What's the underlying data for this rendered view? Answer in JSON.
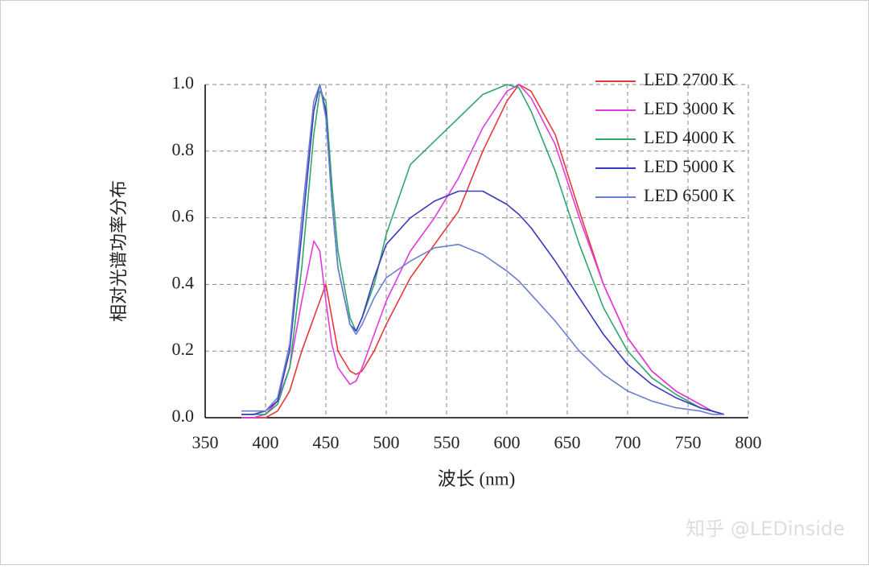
{
  "chart_data": {
    "type": "line",
    "xlabel": "波长 (nm)",
    "ylabel": "相对光谱功率分布",
    "x": [
      380,
      390,
      400,
      410,
      420,
      430,
      440,
      445,
      450,
      455,
      460,
      470,
      475,
      480,
      490,
      500,
      520,
      540,
      560,
      580,
      600,
      610,
      620,
      640,
      660,
      680,
      700,
      720,
      740,
      760,
      770,
      780
    ],
    "series": [
      {
        "name": "LED 2700 K",
        "color": "#e8383d",
        "values": [
          0,
          0,
          0,
          0.02,
          0.08,
          0.2,
          0.3,
          0.35,
          0.4,
          0.3,
          0.2,
          0.14,
          0.13,
          0.14,
          0.2,
          0.28,
          0.42,
          0.52,
          0.62,
          0.8,
          0.95,
          1.0,
          0.98,
          0.85,
          0.62,
          0.4,
          0.24,
          0.14,
          0.08,
          0.04,
          0.02,
          0.01
        ]
      },
      {
        "name": "LED 3000 K",
        "color": "#e03ae0",
        "values": [
          0,
          0,
          0.01,
          0.05,
          0.15,
          0.35,
          0.53,
          0.5,
          0.35,
          0.22,
          0.15,
          0.1,
          0.11,
          0.15,
          0.25,
          0.35,
          0.5,
          0.6,
          0.72,
          0.87,
          0.98,
          1.0,
          0.96,
          0.82,
          0.6,
          0.4,
          0.24,
          0.14,
          0.08,
          0.04,
          0.02,
          0.01
        ]
      },
      {
        "name": "LED 4000 K",
        "color": "#2ea86a",
        "values": [
          0.01,
          0.01,
          0.01,
          0.04,
          0.15,
          0.45,
          0.85,
          0.98,
          0.95,
          0.7,
          0.5,
          0.3,
          0.26,
          0.3,
          0.4,
          0.55,
          0.76,
          0.83,
          0.9,
          0.97,
          1.0,
          0.99,
          0.92,
          0.74,
          0.52,
          0.33,
          0.2,
          0.12,
          0.07,
          0.03,
          0.02,
          0.01
        ]
      },
      {
        "name": "LED 5000 K",
        "color": "#3a3ac0",
        "values": [
          0.01,
          0.01,
          0.02,
          0.05,
          0.2,
          0.55,
          0.92,
          1.0,
          0.92,
          0.65,
          0.45,
          0.28,
          0.26,
          0.3,
          0.42,
          0.52,
          0.6,
          0.65,
          0.68,
          0.68,
          0.64,
          0.61,
          0.57,
          0.47,
          0.36,
          0.25,
          0.16,
          0.1,
          0.06,
          0.03,
          0.02,
          0.01
        ]
      },
      {
        "name": "LED 6500 K",
        "color": "#6a7fd0",
        "values": [
          0.02,
          0.02,
          0.02,
          0.06,
          0.22,
          0.6,
          0.95,
          1.0,
          0.9,
          0.65,
          0.45,
          0.28,
          0.25,
          0.28,
          0.36,
          0.42,
          0.47,
          0.51,
          0.52,
          0.49,
          0.44,
          0.41,
          0.37,
          0.29,
          0.2,
          0.13,
          0.08,
          0.05,
          0.03,
          0.02,
          0.01,
          0.01
        ]
      }
    ],
    "xlim": [
      350,
      800
    ],
    "xticks": [
      350,
      400,
      450,
      500,
      550,
      600,
      650,
      700,
      750,
      800
    ],
    "ylim": [
      0,
      1
    ],
    "yticks": [
      {
        "value": 0,
        "label": "0.0"
      },
      0.2,
      0.4,
      0.6,
      0.8,
      {
        "value": 1,
        "label": "1.0"
      }
    ],
    "grid": true,
    "legend": "top-right"
  },
  "watermark": "知乎 @LEDinside"
}
